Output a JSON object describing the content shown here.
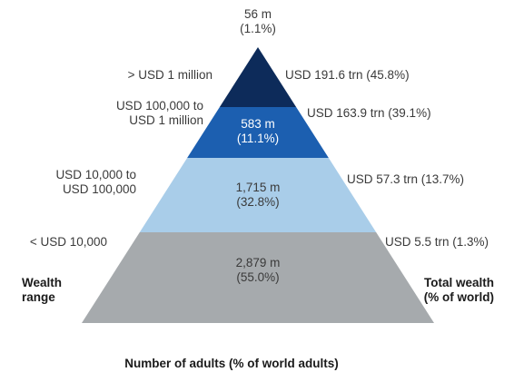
{
  "chart_data": {
    "type": "pyramid",
    "tiers": [
      {
        "wealth_range_lines": [
          "> USD 1 million"
        ],
        "adults": "56 m",
        "adults_share": "(1.1%)",
        "adults_value_m": 56,
        "adults_pct": 1.1,
        "total_wealth": "USD 191.6 trn (45.8%)",
        "total_wealth_trn": 191.6,
        "total_wealth_pct": 45.8,
        "color": "#0d2b5a"
      },
      {
        "wealth_range_lines": [
          "USD 100,000 to",
          "USD 1 million"
        ],
        "adults": "583 m",
        "adults_share": "(11.1%)",
        "adults_value_m": 583,
        "adults_pct": 11.1,
        "total_wealth": "USD 163.9 trn (39.1%)",
        "total_wealth_trn": 163.9,
        "total_wealth_pct": 39.1,
        "color": "#1c5fb0"
      },
      {
        "wealth_range_lines": [
          "USD 10,000 to",
          "USD 100,000"
        ],
        "adults": "1,715 m",
        "adults_share": "(32.8%)",
        "adults_value_m": 1715,
        "adults_pct": 32.8,
        "total_wealth": "USD 57.3 trn (13.7%)",
        "total_wealth_trn": 57.3,
        "total_wealth_pct": 13.7,
        "color": "#a9cde9"
      },
      {
        "wealth_range_lines": [
          "< USD 10,000"
        ],
        "adults": "2,879 m",
        "adults_share": "(55.0%)",
        "adults_value_m": 2879,
        "adults_pct": 55.0,
        "total_wealth": "USD 5.5 trn (1.3%)",
        "total_wealth_trn": 5.5,
        "total_wealth_pct": 1.3,
        "color": "#a6aaad"
      }
    ],
    "left_axis_label_lines": [
      "Wealth",
      "range"
    ],
    "right_axis_label_lines": [
      "Total wealth",
      "(% of world)"
    ],
    "xlabel": "Number of adults (% of world adults)"
  }
}
